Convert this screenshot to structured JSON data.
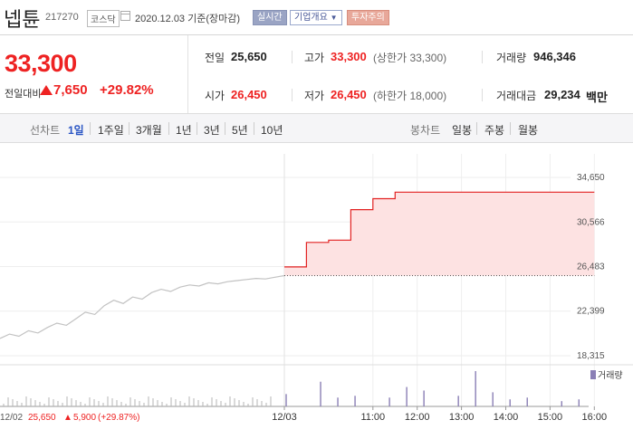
{
  "header": {
    "stock_name": "넵튠",
    "stock_code": "217270",
    "market": "코스닥",
    "as_of": "2020.12.03  기준(장마감)",
    "realtime_label": "실시간",
    "company_info_label": "기업개요",
    "caution_label": "투자주의"
  },
  "summary": {
    "price": "33,300",
    "change_label": "전일대비",
    "change_value": "7,650",
    "change_percent": "+29.82%",
    "direction": "up"
  },
  "stats": {
    "prev_close": {
      "label": "전일",
      "value": "25,650"
    },
    "high": {
      "label": "고가",
      "value": "33,300",
      "sub": "(상한가 33,300)"
    },
    "volume": {
      "label": "거래량",
      "value": "946,346"
    },
    "open": {
      "label": "시가",
      "value": "26,450"
    },
    "low": {
      "label": "저가",
      "value": "26,450",
      "sub": "(하한가 18,000)"
    },
    "trade_value": {
      "label": "거래대금",
      "value": "29,234",
      "unit": "백만"
    }
  },
  "tabs": {
    "line_header": "선차트",
    "line_periods": [
      "1일",
      "1주일",
      "3개월",
      "1년",
      "3년",
      "5년",
      "10년"
    ],
    "active_period": "1일",
    "candle_header": "봉차트",
    "candle_periods": [
      "일봉",
      "주봉",
      "월봉"
    ]
  },
  "colors": {
    "up": "#e22222",
    "area": "#fde2e2",
    "prev_day_line": "#c2c2c2"
  },
  "chart_data": {
    "type": "line",
    "y_ticks": [
      "34,650",
      "30,566",
      "26,483",
      "22,399",
      "18,315"
    ],
    "ylim": [
      18315,
      34650
    ],
    "x_labels": [
      "12/03",
      "11:00",
      "12:00",
      "13:00",
      "14:00",
      "15:00",
      "16:00"
    ],
    "prev_day": {
      "date": "12/02",
      "close": "25,650",
      "change": "5,900",
      "change_percent": "(+29.87%)",
      "values": [
        19900,
        20300,
        20100,
        20600,
        20400,
        20900,
        21300,
        21100,
        21700,
        22300,
        22100,
        22900,
        23400,
        23100,
        23700,
        23500,
        24100,
        24400,
        24200,
        24600,
        24800,
        24700,
        25000,
        24900,
        25100,
        25200,
        25300,
        25400,
        25350,
        25500,
        25650
      ]
    },
    "today": {
      "steps": [
        [
          9.0,
          26450
        ],
        [
          9.5,
          28700
        ],
        [
          10.0,
          28900
        ],
        [
          10.5,
          31700
        ],
        [
          11.0,
          32700
        ],
        [
          11.5,
          33300
        ],
        [
          16.0,
          33300
        ]
      ],
      "base_value": 25650
    },
    "volume_label": "거래량",
    "volume_today": [
      0.35,
      0.0,
      0.7,
      0.25,
      0.3,
      0.0,
      0.25,
      0.55,
      0.45,
      0.0,
      0.3,
      1.0,
      0.4,
      0.2,
      0.25,
      0.0,
      0.15,
      0.2
    ]
  }
}
